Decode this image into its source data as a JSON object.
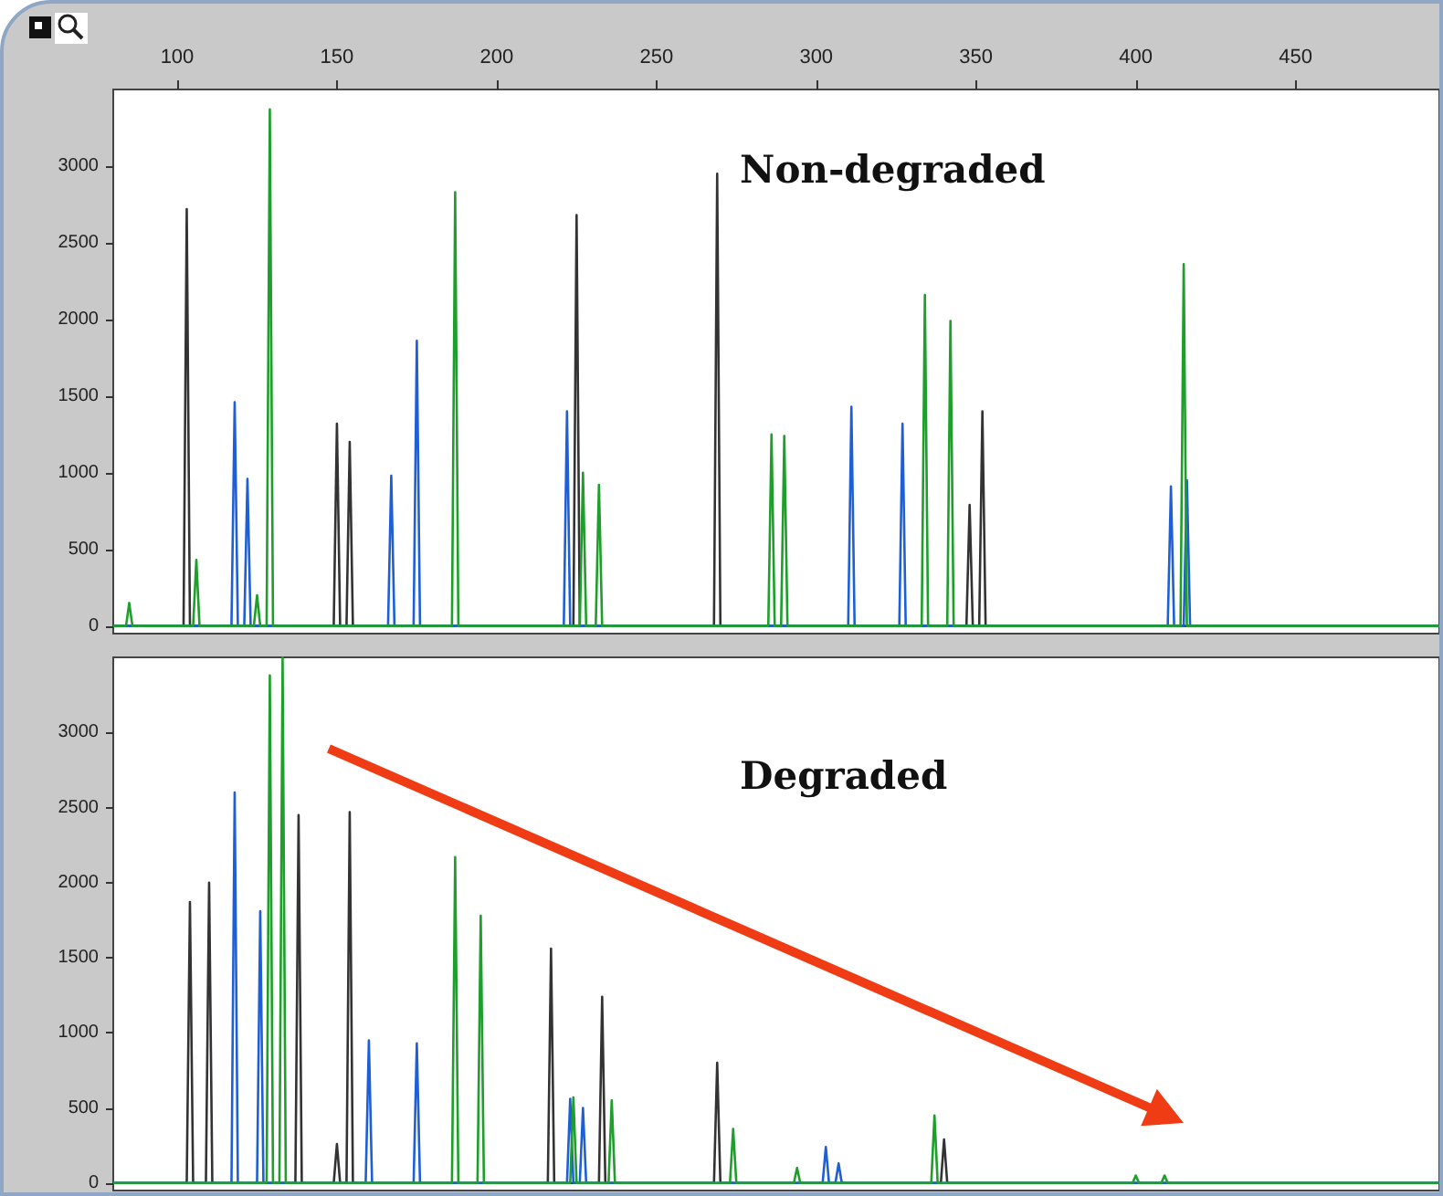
{
  "chart_data": [
    {
      "type": "line",
      "title": "Non-degraded",
      "xlim": [
        80,
        495
      ],
      "xticks": [
        100,
        150,
        200,
        250,
        300,
        350,
        400,
        450
      ],
      "ylim": [
        -50,
        3500
      ],
      "yticks": [
        0,
        500,
        1000,
        1500,
        2000,
        2500,
        3000
      ],
      "grid": false,
      "series": [
        {
          "color": "#333333",
          "x": [
            80,
            102,
            103,
            104,
            149,
            150,
            151,
            153,
            154,
            155,
            224,
            225,
            226,
            268,
            269,
            270,
            347,
            348,
            349,
            351,
            352,
            353,
            495
          ],
          "values": [
            0,
            0,
            2720,
            0,
            0,
            1320,
            0,
            0,
            1200,
            0,
            0,
            2680,
            0,
            0,
            2950,
            0,
            0,
            790,
            0,
            0,
            1400,
            0,
            0
          ]
        },
        {
          "color": "#1f5fd6",
          "x": [
            80,
            117,
            118,
            119,
            121,
            122,
            123,
            166,
            167,
            168,
            174,
            175,
            176,
            221,
            222,
            223,
            310,
            311,
            312,
            326,
            327,
            328,
            410,
            411,
            412,
            415,
            416,
            417,
            495
          ],
          "values": [
            0,
            0,
            1460,
            0,
            0,
            960,
            0,
            0,
            980,
            0,
            0,
            1860,
            0,
            0,
            1400,
            0,
            0,
            1430,
            0,
            0,
            1320,
            0,
            0,
            910,
            0,
            0,
            950,
            0,
            0
          ]
        },
        {
          "color": "#1e9e2a",
          "x": [
            80,
            84,
            85,
            86,
            105,
            106,
            107,
            124,
            125,
            126,
            128,
            129,
            130,
            186,
            187,
            188,
            226,
            227,
            228,
            231,
            232,
            233,
            285,
            286,
            287,
            289,
            290,
            291,
            333,
            334,
            335,
            341,
            342,
            343,
            414,
            415,
            416,
            495
          ],
          "values": [
            0,
            0,
            150,
            0,
            0,
            430,
            0,
            0,
            200,
            0,
            0,
            3370,
            0,
            0,
            2830,
            0,
            0,
            1000,
            0,
            0,
            920,
            0,
            0,
            1250,
            0,
            0,
            1240,
            0,
            0,
            2160,
            0,
            0,
            1990,
            0,
            0,
            2360,
            0,
            0
          ]
        }
      ]
    },
    {
      "type": "line",
      "title": "Degraded",
      "xlim": [
        80,
        495
      ],
      "ylim": [
        -50,
        3500
      ],
      "yticks": [
        0,
        500,
        1000,
        1500,
        2000,
        2500,
        3000
      ],
      "grid": false,
      "tick_labels": "y",
      "series": [
        {
          "color": "#333333",
          "x": [
            80,
            103,
            104,
            105,
            109,
            110,
            111,
            137,
            138,
            139,
            149,
            150,
            151,
            153,
            154,
            155,
            216,
            217,
            218,
            232,
            233,
            234,
            268,
            269,
            270,
            339,
            340,
            341,
            495
          ],
          "values": [
            0,
            0,
            1870,
            0,
            0,
            2000,
            0,
            0,
            2450,
            0,
            0,
            260,
            0,
            0,
            2470,
            0,
            0,
            1560,
            0,
            0,
            1240,
            0,
            0,
            800,
            0,
            0,
            290,
            0,
            0
          ]
        },
        {
          "color": "#1f5fd6",
          "x": [
            80,
            117,
            118,
            119,
            125,
            126,
            127,
            159,
            160,
            161,
            174,
            175,
            176,
            222,
            223,
            224,
            226,
            227,
            228,
            302,
            303,
            304,
            306,
            307,
            308,
            495
          ],
          "values": [
            0,
            0,
            2600,
            0,
            0,
            1810,
            0,
            0,
            950,
            0,
            0,
            930,
            0,
            0,
            560,
            0,
            0,
            500,
            0,
            0,
            240,
            0,
            0,
            130,
            0,
            0
          ]
        },
        {
          "color": "#1e9e2a",
          "x": [
            80,
            128,
            129,
            130,
            132,
            133,
            134,
            186,
            187,
            188,
            194,
            195,
            196,
            223,
            224,
            225,
            235,
            236,
            237,
            273,
            274,
            275,
            293,
            294,
            295,
            336,
            337,
            338,
            399,
            400,
            401,
            408,
            409,
            410,
            495
          ],
          "values": [
            0,
            0,
            3380,
            0,
            0,
            3500,
            0,
            0,
            2170,
            0,
            0,
            1780,
            0,
            0,
            570,
            0,
            0,
            550,
            0,
            0,
            360,
            0,
            0,
            100,
            0,
            0,
            450,
            0,
            0,
            50,
            0,
            0,
            50,
            0,
            0
          ]
        }
      ]
    }
  ]
}
